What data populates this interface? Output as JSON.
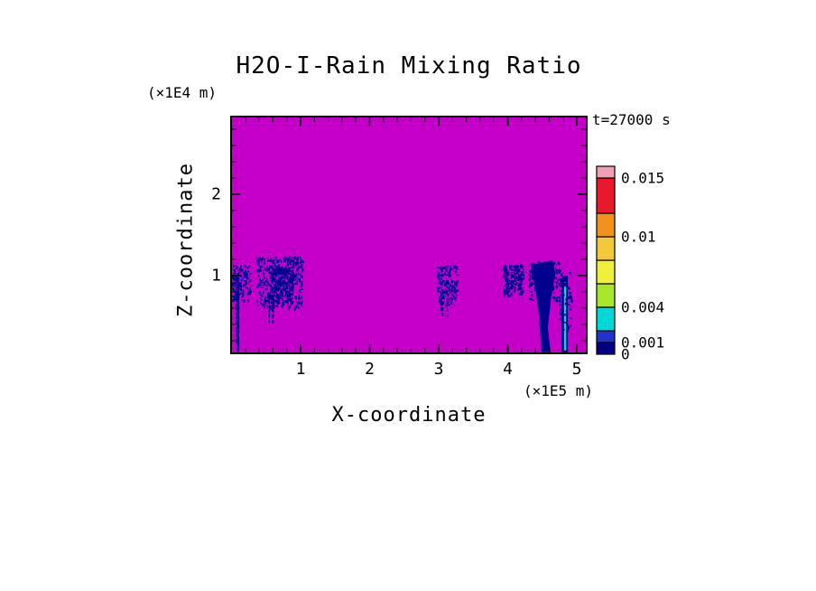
{
  "page": {
    "background": "#FFFFFF"
  },
  "chart_data": {
    "type": "heatmap",
    "title": "H2O-I-Rain Mixing Ratio",
    "time_label": "t=27000 s",
    "x_axis": {
      "label": "X-coordinate",
      "units": "(×1E5 m)",
      "ticks": [
        "1",
        "2",
        "3",
        "4",
        "5"
      ],
      "tick_values": [
        1,
        2,
        3,
        4,
        5
      ],
      "range": [
        0,
        5.15
      ]
    },
    "z_axis": {
      "label": "Z-coordinate",
      "units": "(×1E4 m)",
      "ticks": [
        "1",
        "2"
      ],
      "tick_values": [
        1,
        2
      ],
      "range": [
        0,
        2.95
      ]
    },
    "field": {
      "name": "rain mixing ratio",
      "background_color": "#C400C8",
      "feature_color": "#00008F",
      "feature_color2": "#2424D0",
      "core_color": "#00DCDC"
    },
    "colorbar": {
      "range": [
        0,
        0.016
      ],
      "levels": [
        0,
        0.001,
        0.002,
        0.004,
        0.006,
        0.008,
        0.01,
        0.012,
        0.015,
        0.016
      ],
      "colors": [
        "#000080",
        "#2233CC",
        "#00D8D8",
        "#A8E62E",
        "#F0F03C",
        "#F2C83C",
        "#F2921E",
        "#E8192C",
        "#F0A0B4"
      ],
      "labels": [
        {
          "value": 0,
          "text": "0"
        },
        {
          "value": 0.001,
          "text": "0.001"
        },
        {
          "value": 0.004,
          "text": "0.004"
        },
        {
          "value": 0.01,
          "text": "0.01"
        },
        {
          "value": 0.015,
          "text": "0.015"
        }
      ]
    },
    "features": [
      {
        "type": "speckle",
        "x": [
          0.0,
          0.27
        ],
        "z": [
          0.7,
          1.13
        ],
        "points": 150,
        "seed": 11
      },
      {
        "type": "streaks",
        "x": [
          0.05,
          0.14
        ],
        "z": [
          0.06,
          1.02
        ],
        "count": 6,
        "seed": 12
      },
      {
        "type": "speckle",
        "x": [
          0.36,
          1.02
        ],
        "z": [
          0.6,
          1.24
        ],
        "points": 430,
        "seed": 13
      },
      {
        "type": "speckle",
        "x": [
          0.55,
          0.88
        ],
        "z": [
          0.66,
          1.12
        ],
        "points": 320,
        "seed": 14
      },
      {
        "type": "streaks",
        "x": [
          0.5,
          0.64
        ],
        "z": [
          0.4,
          0.78
        ],
        "count": 5,
        "seed": 15
      },
      {
        "type": "speckle",
        "x": [
          2.97,
          3.26
        ],
        "z": [
          0.63,
          1.13
        ],
        "points": 170,
        "seed": 16
      },
      {
        "type": "streaks",
        "x": [
          3.02,
          3.16
        ],
        "z": [
          0.48,
          0.78
        ],
        "count": 3,
        "seed": 17
      },
      {
        "type": "speckle",
        "x": [
          3.93,
          4.22
        ],
        "z": [
          0.76,
          1.14
        ],
        "points": 210,
        "seed": 18
      },
      {
        "type": "speckle",
        "x": [
          4.3,
          4.76
        ],
        "z": [
          0.7,
          1.18
        ],
        "points": 190,
        "seed": 19
      },
      {
        "type": "polygon",
        "points": [
          [
            4.36,
            1.13
          ],
          [
            4.65,
            1.19
          ],
          [
            4.69,
            1.02
          ],
          [
            4.63,
            0.74
          ],
          [
            4.58,
            0.36
          ],
          [
            4.62,
            0.06
          ],
          [
            4.49,
            0.06
          ],
          [
            4.45,
            0.52
          ],
          [
            4.4,
            0.86
          ],
          [
            4.33,
            1.06
          ]
        ]
      },
      {
        "type": "band",
        "x": [
          4.78,
          4.87
        ],
        "z": [
          0.04,
          1.0
        ]
      },
      {
        "type": "core",
        "x": [
          4.815,
          4.845
        ],
        "z": [
          0.08,
          0.92
        ]
      },
      {
        "type": "speckle",
        "x": [
          4.74,
          4.92
        ],
        "z": [
          0.3,
          1.05
        ],
        "points": 60,
        "seed": 20
      }
    ]
  }
}
